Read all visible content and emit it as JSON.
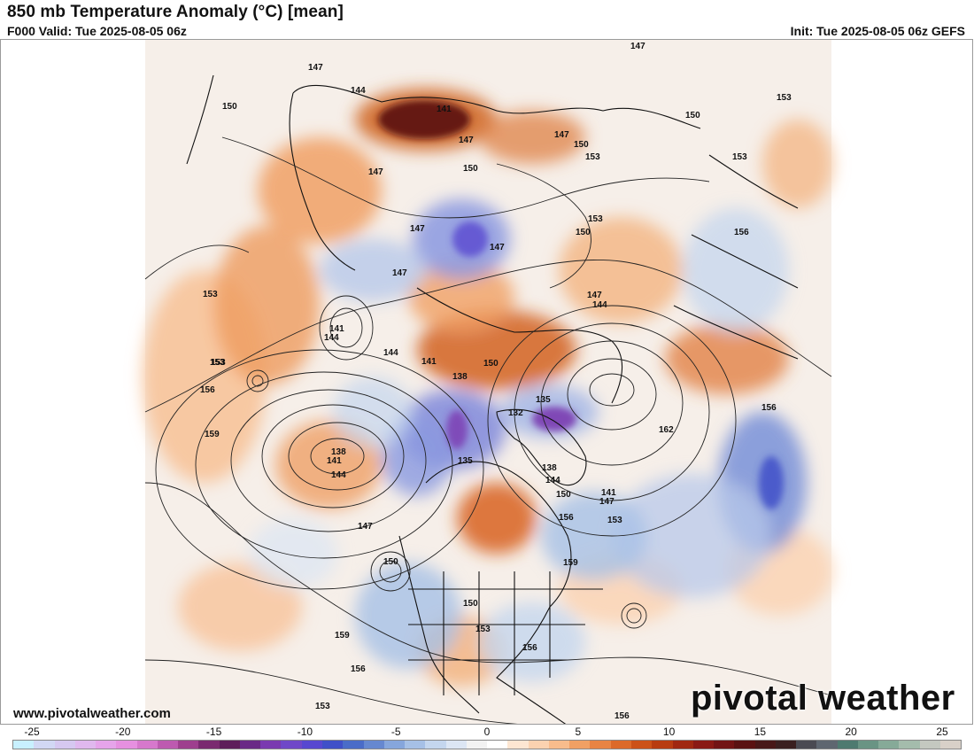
{
  "header": {
    "title": "850 mb Temperature Anomaly (°C) [mean]",
    "valid": "F000 Valid: Tue 2025-08-05 06z",
    "init": "Init: Tue 2025-08-05 06z GEFS"
  },
  "footer": {
    "url": "www.pivotalweather.com",
    "brand": "pivotal weather"
  },
  "colorbar": {
    "ticks": [
      "-25",
      "-20",
      "-15",
      "-10",
      "-5",
      "0",
      "5",
      "10",
      "15",
      "20",
      "25"
    ],
    "colors": [
      "#c8f0ff",
      "#d2d8f4",
      "#d6c8f0",
      "#e0b8ee",
      "#e6a4ea",
      "#e690e0",
      "#d678cc",
      "#bd5ab0",
      "#9e3f8e",
      "#7a2a70",
      "#5e1e5a",
      "#6a2a86",
      "#7a3ab0",
      "#6f48c8",
      "#5848d0",
      "#4050c8",
      "#4a6cc8",
      "#6688d0",
      "#86a6dc",
      "#a6c0e6",
      "#c4d6ee",
      "#dce6f4",
      "#f2f2f2",
      "#ffffff",
      "#fde6d2",
      "#fbd2b0",
      "#f8bc8c",
      "#f0a064",
      "#e88444",
      "#dc6a2a",
      "#cc5218",
      "#b83c10",
      "#a02810",
      "#8a1a14",
      "#721414",
      "#5a1212",
      "#481818",
      "#3a2020",
      "#4a4a52",
      "#5e6670",
      "#4e7a70",
      "#6a9484",
      "#86aa98",
      "#a4bcac",
      "#c4c8c0",
      "#d8d0c8"
    ]
  },
  "map": {
    "contour_labels": [
      "147",
      "147",
      "153",
      "144",
      "150",
      "141",
      "147",
      "147",
      "150",
      "150",
      "153",
      "153",
      "150",
      "153",
      "147",
      "150",
      "153",
      "156",
      "147",
      "147",
      "153",
      "147",
      "147",
      "144",
      "141",
      "144",
      "141",
      "150",
      "144",
      "153",
      "138",
      "135",
      "132",
      "156",
      "162",
      "156",
      "159",
      "138",
      "141",
      "144",
      "135",
      "138",
      "144",
      "150",
      "141",
      "147",
      "156",
      "153",
      "147",
      "150",
      "159",
      "150",
      "153",
      "156",
      "159",
      "156",
      "153",
      "156"
    ]
  }
}
